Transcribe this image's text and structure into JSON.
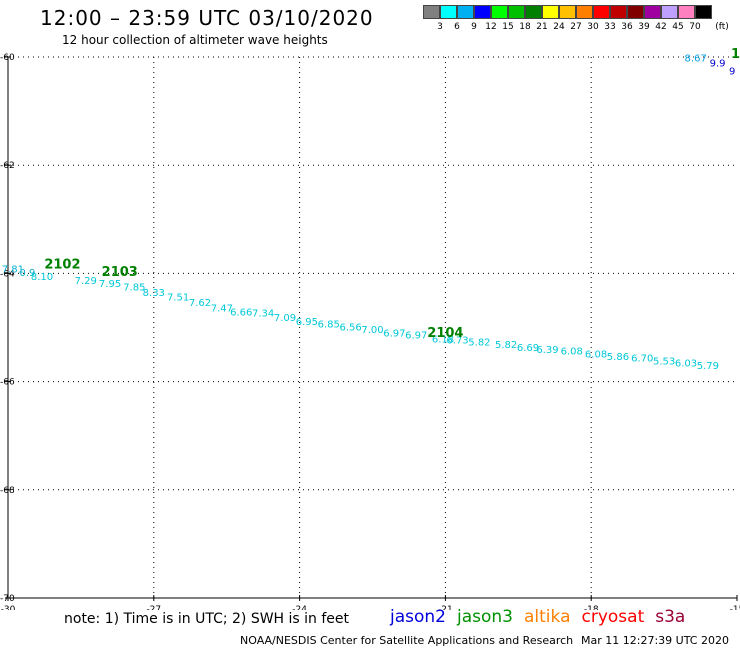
{
  "header": {
    "title": "12:00 – 23:59 UTC 03/10/2020",
    "subtitle": "12 hour collection of altimeter wave heights"
  },
  "color_scale": {
    "unit": "(ft)",
    "colors": [
      "#808080",
      "#00ffff",
      "#00b0f0",
      "#0000ff",
      "#00ff00",
      "#00c000",
      "#008000",
      "#ffff00",
      "#ffc000",
      "#ff8000",
      "#ff0000",
      "#c00000",
      "#800000",
      "#a000a0",
      "#c0a0ff",
      "#ff80c0",
      "#000000"
    ],
    "ticks": [
      "3",
      "6",
      "9",
      "12",
      "15",
      "18",
      "21",
      "24",
      "27",
      "30",
      "33",
      "36",
      "39",
      "42",
      "45",
      "70"
    ]
  },
  "footer": {
    "note": "note: 1) Time is in UTC; 2) SWH is in feet",
    "satellites": [
      {
        "name": "jason2",
        "color": "#0000dd"
      },
      {
        "name": "jason3",
        "color": "#009000"
      },
      {
        "name": "altika",
        "color": "#ff8000"
      },
      {
        "name": "cryosat",
        "color": "#ff0000"
      },
      {
        "name": "s3a",
        "color": "#990033"
      }
    ],
    "credit": "NOAA/NESDIS Center for Satellite Applications and Research",
    "timestamp": "Mar 11 12:27:39 UTC 2020"
  },
  "chart_data": {
    "type": "scatter",
    "x_axis": {
      "range": [
        -30,
        -15
      ],
      "ticks": [
        "-30",
        "-27",
        "-24",
        "-21",
        "-18",
        "-15"
      ],
      "grid": true
    },
    "y_axis": {
      "range": [
        -70,
        -60
      ],
      "ticks": [
        "-60",
        "-62",
        "-64",
        "-66",
        "-68",
        "-70"
      ],
      "grid": true
    },
    "track_labels": [
      {
        "text": "2102",
        "x": -28.88,
        "y": -63.91
      },
      {
        "text": "2103",
        "x": -27.7,
        "y": -64.05
      },
      {
        "text": "2104",
        "x": -21.0,
        "y": -65.18
      },
      {
        "text": "1",
        "x": -15.03,
        "y": -60.02
      }
    ],
    "points": [
      {
        "x": -29.9,
        "y": -63.98,
        "v": "7.81",
        "color": "#00b0d0"
      },
      {
        "x": -29.6,
        "y": -64.05,
        "v": "0.9",
        "color": "#00b0d0"
      },
      {
        "x": -29.3,
        "y": -64.12,
        "v": "8.10",
        "color": "#00c8d8"
      },
      {
        "x": -28.4,
        "y": -64.2,
        "v": "7.29",
        "color": "#00c8d8"
      },
      {
        "x": -27.9,
        "y": -64.25,
        "v": "7.95",
        "color": "#00c8d8"
      },
      {
        "x": -27.4,
        "y": -64.32,
        "v": "7.85",
        "color": "#00c8d8"
      },
      {
        "x": -27.0,
        "y": -64.42,
        "v": "8.33",
        "color": "#00c8d8"
      },
      {
        "x": -26.5,
        "y": -64.5,
        "v": "7.51",
        "color": "#00c8d8"
      },
      {
        "x": -26.05,
        "y": -64.6,
        "v": "7.62",
        "color": "#00c8d8"
      },
      {
        "x": -25.6,
        "y": -64.7,
        "v": "7.47",
        "color": "#00c8d8"
      },
      {
        "x": -25.2,
        "y": -64.78,
        "v": "6.66",
        "color": "#00c8d8"
      },
      {
        "x": -24.75,
        "y": -64.8,
        "v": "7.34",
        "color": "#00c8d8"
      },
      {
        "x": -24.3,
        "y": -64.88,
        "v": "7.09",
        "color": "#00c8d8"
      },
      {
        "x": -23.85,
        "y": -64.95,
        "v": "6.95",
        "color": "#00c8d8"
      },
      {
        "x": -23.4,
        "y": -65.0,
        "v": "6.85",
        "color": "#00c8d8"
      },
      {
        "x": -22.95,
        "y": -65.06,
        "v": "6.56",
        "color": "#00c8d8"
      },
      {
        "x": -22.5,
        "y": -65.1,
        "v": "7.00",
        "color": "#00c8d8"
      },
      {
        "x": -22.05,
        "y": -65.17,
        "v": "6.97",
        "color": "#00c8d8"
      },
      {
        "x": -21.6,
        "y": -65.2,
        "v": "6.97",
        "color": "#00c8d8"
      },
      {
        "x": -21.05,
        "y": -65.28,
        "v": "6.18",
        "color": "#00c8d8"
      },
      {
        "x": -20.75,
        "y": -65.3,
        "v": "6.73",
        "color": "#00c8d8"
      },
      {
        "x": -20.3,
        "y": -65.33,
        "v": "5.82",
        "color": "#00c8d8"
      },
      {
        "x": -19.75,
        "y": -65.38,
        "v": "5.82",
        "color": "#00c8d8"
      },
      {
        "x": -19.3,
        "y": -65.43,
        "v": "6.69",
        "color": "#00c8d8"
      },
      {
        "x": -18.9,
        "y": -65.47,
        "v": "6.39",
        "color": "#00c8d8"
      },
      {
        "x": -18.4,
        "y": -65.5,
        "v": "6.08",
        "color": "#00c8d8"
      },
      {
        "x": -17.9,
        "y": -65.55,
        "v": "6.08",
        "color": "#00c8d8"
      },
      {
        "x": -17.45,
        "y": -65.6,
        "v": "5.86",
        "color": "#00c8d8"
      },
      {
        "x": -16.95,
        "y": -65.63,
        "v": "6.70",
        "color": "#00c8d8"
      },
      {
        "x": -16.5,
        "y": -65.68,
        "v": "5.53",
        "color": "#00c8d8"
      },
      {
        "x": -16.05,
        "y": -65.72,
        "v": "6.03",
        "color": "#00c8d8"
      },
      {
        "x": -15.6,
        "y": -65.77,
        "v": "5.79",
        "color": "#00c8d8"
      },
      {
        "x": -15.85,
        "y": -60.08,
        "v": "8.67",
        "color": "#00a0e0"
      },
      {
        "x": -15.4,
        "y": -60.18,
        "v": "9.9",
        "color": "#0000cc"
      },
      {
        "x": -15.1,
        "y": -60.32,
        "v": "9",
        "color": "#0000cc"
      }
    ]
  }
}
